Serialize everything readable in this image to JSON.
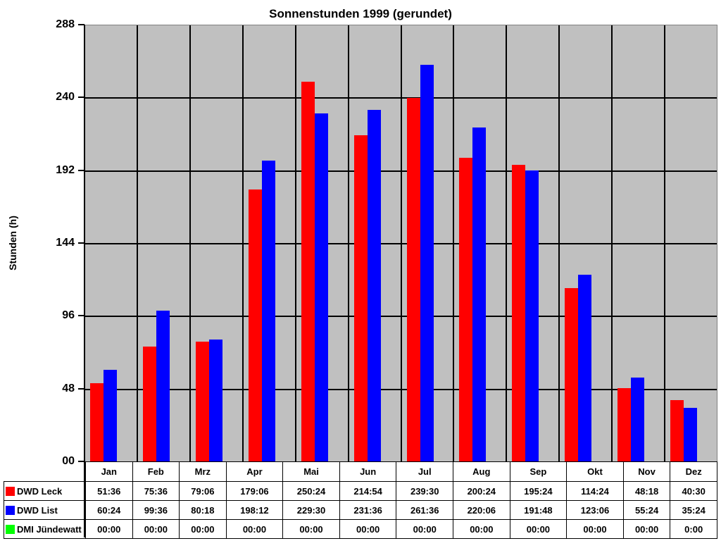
{
  "chart_data": {
    "type": "bar",
    "title": "Sonnenstunden 1999 (gerundet)",
    "xlabel": "",
    "ylabel": "Stunden (h)",
    "ylim": [
      0,
      288
    ],
    "yticks": [
      "00",
      "48",
      "96",
      "144",
      "192",
      "240",
      "288"
    ],
    "grid": true,
    "legend_position": "data-table-left",
    "categories": [
      "Jan",
      "Feb",
      "Mrz",
      "Apr",
      "Mai",
      "Jun",
      "Jul",
      "Aug",
      "Sep",
      "Okt",
      "Nov",
      "Dez"
    ],
    "series": [
      {
        "name": "DWD Leck",
        "color": "#ff0000",
        "values": [
          51.6,
          75.6,
          79.1,
          179.1,
          250.4,
          214.9,
          239.5,
          200.4,
          195.4,
          114.4,
          48.3,
          40.5
        ],
        "labels": [
          "51:36",
          "75:36",
          "79:06",
          "179:06",
          "250:24",
          "214:54",
          "239:30",
          "200:24",
          "195:24",
          "114:24",
          "48:18",
          "40:30"
        ]
      },
      {
        "name": "DWD List",
        "color": "#0000ff",
        "values": [
          60.4,
          99.6,
          80.3,
          198.2,
          229.5,
          231.6,
          261.6,
          220.1,
          191.8,
          123.1,
          55.4,
          35.4
        ],
        "labels": [
          "60:24",
          "99:36",
          "80:18",
          "198:12",
          "229:30",
          "231:36",
          "261:36",
          "220:06",
          "191:48",
          "123:06",
          "55:24",
          "35:24"
        ]
      },
      {
        "name": "DMI Jündewatt",
        "color": "#00ff00",
        "values": [
          0,
          0,
          0,
          0,
          0,
          0,
          0,
          0,
          0,
          0,
          0,
          0
        ],
        "labels": [
          "00:00",
          "00:00",
          "00:00",
          "00:00",
          "00:00",
          "00:00",
          "00:00",
          "00:00",
          "00:00",
          "00:00",
          "00:00",
          "0:00"
        ]
      }
    ]
  }
}
